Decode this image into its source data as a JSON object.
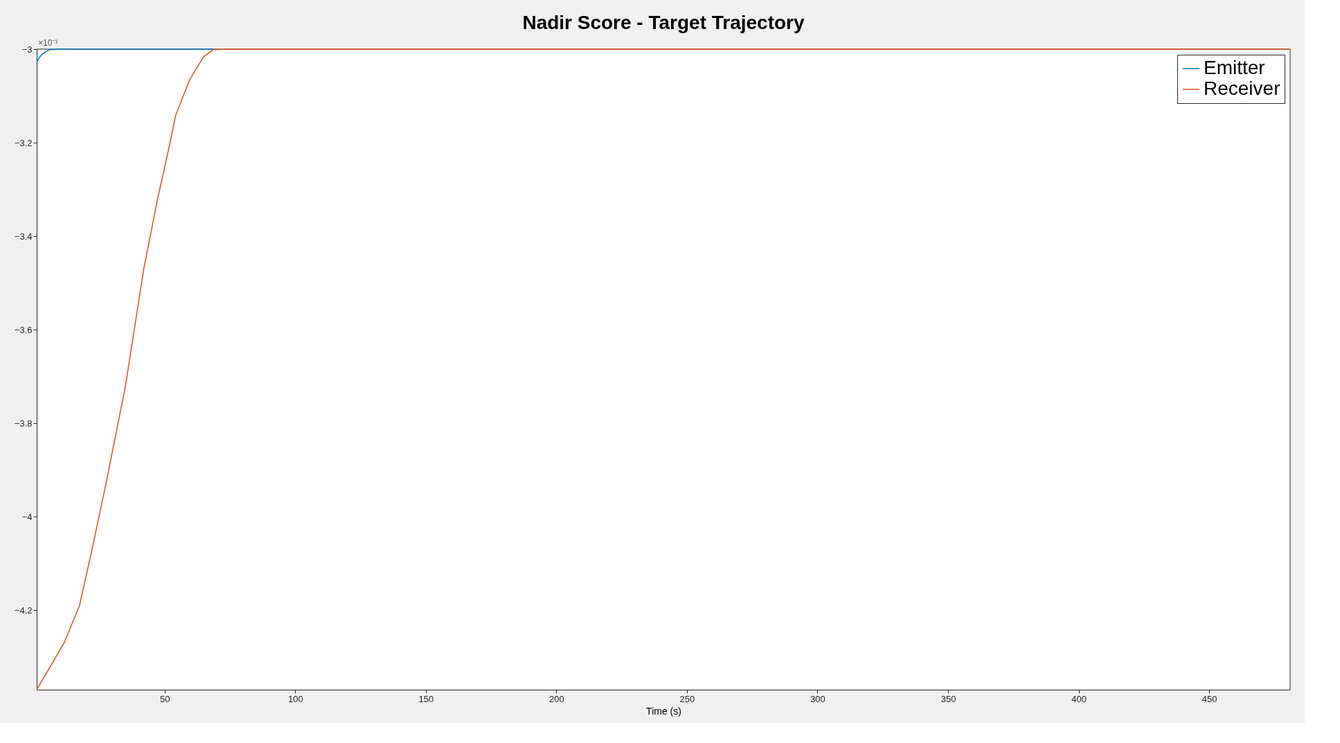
{
  "chart_data": {
    "type": "line",
    "title": "Nadir Score - Target Trajectory",
    "xlabel": "Time (s)",
    "annotations": [
      "×10⁻³"
    ],
    "series": [
      {
        "name": "Emitter",
        "color": "#0072bd",
        "x": [
          1,
          2,
          3.1,
          4.5,
          6,
          10,
          68.6
        ],
        "values": [
          -3.028,
          -3.018,
          -3.011,
          -3.005,
          -3.001,
          -3.0,
          -3.0
        ]
      },
      {
        "name": "Receiver",
        "color": "#d95319",
        "x": [
          1,
          11.5,
          17.4,
          22.2,
          27.5,
          35,
          42,
          47.3,
          50.9,
          54.3,
          59.6,
          64.9,
          68.6,
          75,
          100,
          481
        ],
        "values": [
          -4.37,
          -4.27,
          -4.19,
          -4.07,
          -3.93,
          -3.72,
          -3.47,
          -3.32,
          -3.23,
          -3.14,
          -3.065,
          -3.016,
          -3.001,
          -3.0,
          -3.0,
          -3.0
        ]
      }
    ],
    "xlim": [
      1,
      481
    ],
    "ylim": [
      -4.37,
      -3
    ],
    "xticks": [
      50,
      100,
      150,
      200,
      250,
      300,
      350,
      400,
      450
    ],
    "yticks": [
      -3,
      -3.2,
      -3.4,
      -3.6,
      -3.8,
      -4,
      -4.2
    ],
    "grid": false,
    "legend": "top right",
    "line_style": "solid",
    "marker": "none"
  }
}
